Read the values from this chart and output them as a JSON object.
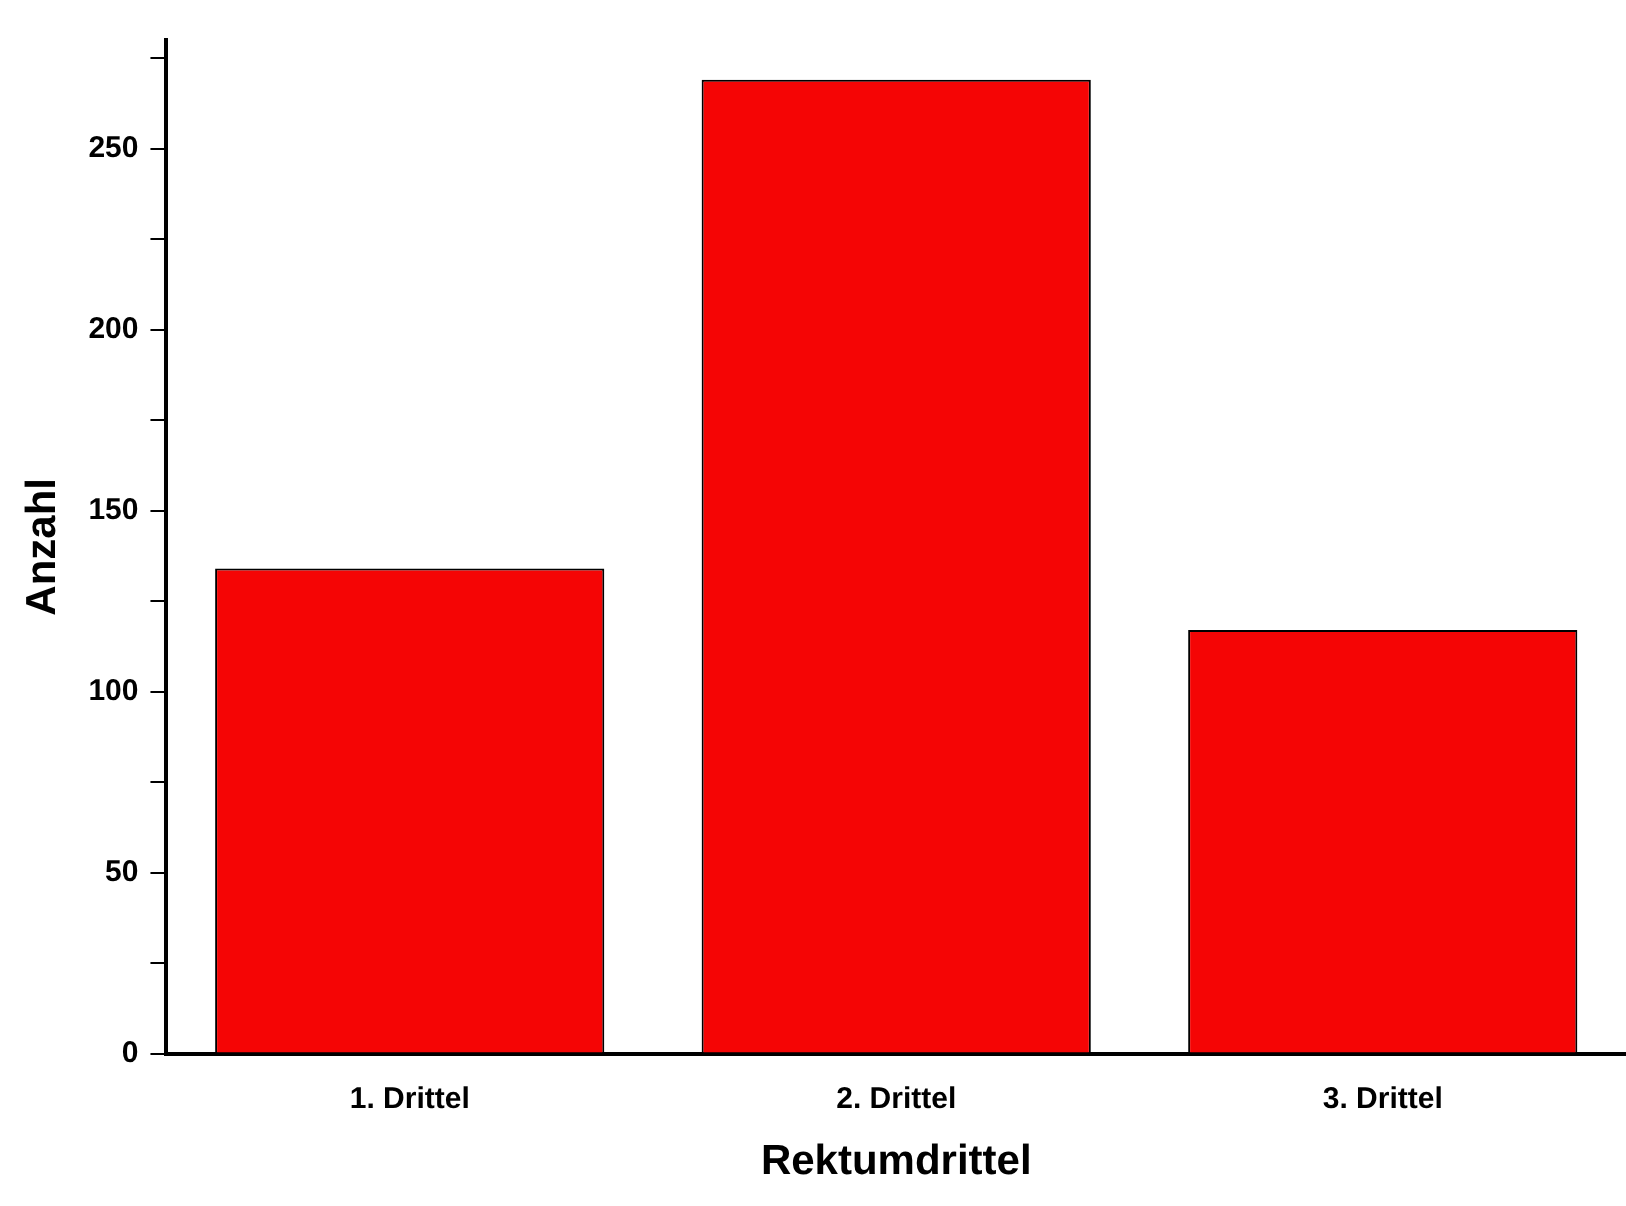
{
  "chart_data": {
    "type": "bar",
    "xlabel": "Rektumdrittel",
    "ylabel": "Anzahl",
    "categories": [
      "1. Drittel",
      "2. Drittel",
      "3. Drittel"
    ],
    "values": [
      134,
      269,
      117
    ],
    "color": "#f50505",
    "ylim": [
      0,
      280
    ],
    "yticks": [
      0,
      {
        "value": 25,
        "label": null
      },
      50,
      {
        "value": 75,
        "label": null
      },
      100,
      {
        "value": 125,
        "label": null
      },
      150,
      {
        "value": 175,
        "label": null
      },
      200,
      {
        "value": 225,
        "label": null
      },
      250,
      {
        "value": 275,
        "label": null
      }
    ],
    "grid": false,
    "legend": false
  }
}
